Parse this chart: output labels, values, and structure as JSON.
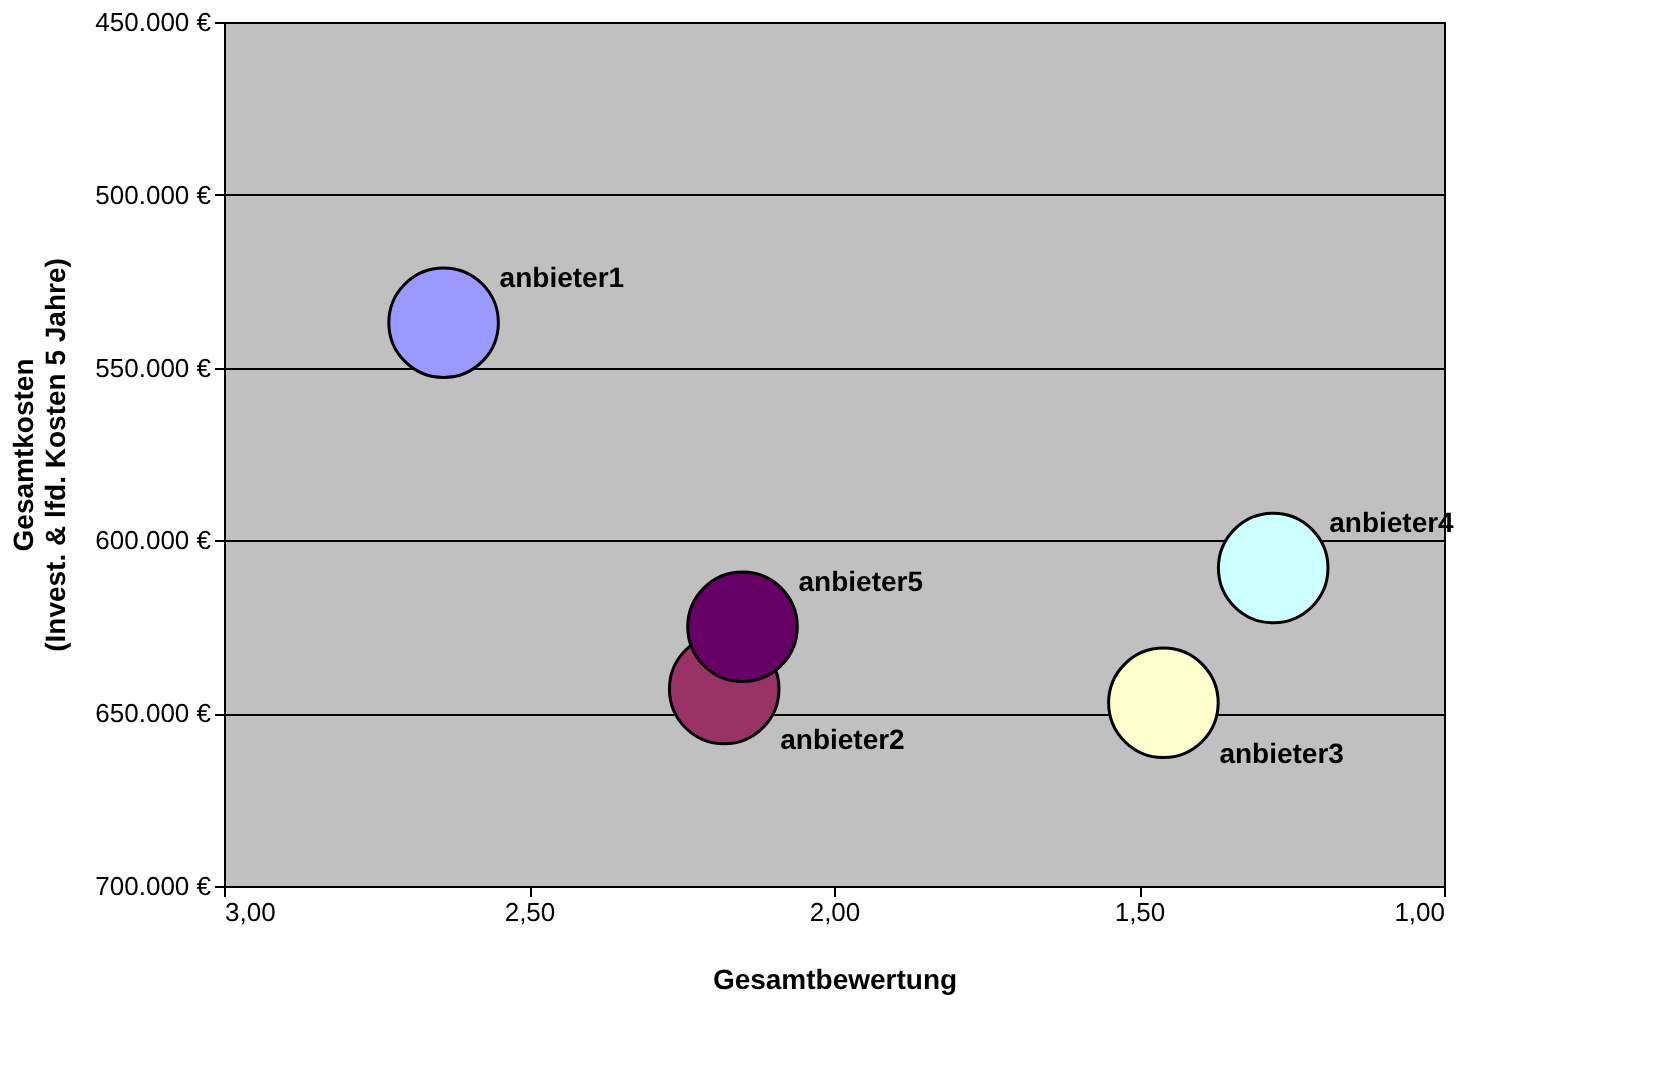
{
  "chart_data": {
    "type": "bubble",
    "xlabel": "Gesamtbewertung",
    "ylabel": "Gesamtkosten\n(Invest. & lfd. Kosten 5 Jahre)",
    "xlim": [
      3.0,
      1.0
    ],
    "xticks": [
      {
        "value": 3.0,
        "label": "3,00"
      },
      {
        "value": 2.5,
        "label": "2,50"
      },
      {
        "value": 2.0,
        "label": "2,00"
      },
      {
        "value": 1.5,
        "label": "1,50"
      },
      {
        "value": 1.0,
        "label": "1,00"
      }
    ],
    "ylim": [
      700000,
      450000
    ],
    "yticks": [
      {
        "value": 450000,
        "label": "450.000 €"
      },
      {
        "value": 500000,
        "label": "500.000 €"
      },
      {
        "value": 550000,
        "label": "550.000 €"
      },
      {
        "value": 600000,
        "label": "600.000 €"
      },
      {
        "value": 650000,
        "label": "650.000 €"
      },
      {
        "value": 700000,
        "label": "700.000 €"
      }
    ],
    "grid": "y",
    "series": [
      {
        "name": "anbieter1",
        "color": "#9999ff",
        "x": [
          2.64
        ],
        "values": [
          537000
        ],
        "sizes": [
          1
        ]
      },
      {
        "name": "anbieter2",
        "color": "#993366",
        "x": [
          2.18
        ],
        "values": [
          643000
        ],
        "sizes": [
          1
        ]
      },
      {
        "name": "anbieter3",
        "color": "#ffffcc",
        "x": [
          1.46
        ],
        "values": [
          647000
        ],
        "sizes": [
          1
        ]
      },
      {
        "name": "anbieter4",
        "color": "#ccffff",
        "x": [
          1.28
        ],
        "values": [
          608000
        ],
        "sizes": [
          1
        ]
      },
      {
        "name": "anbieter5",
        "color": "#660066",
        "x": [
          2.15
        ],
        "values": [
          625000
        ],
        "sizes": [
          1
        ]
      }
    ]
  }
}
